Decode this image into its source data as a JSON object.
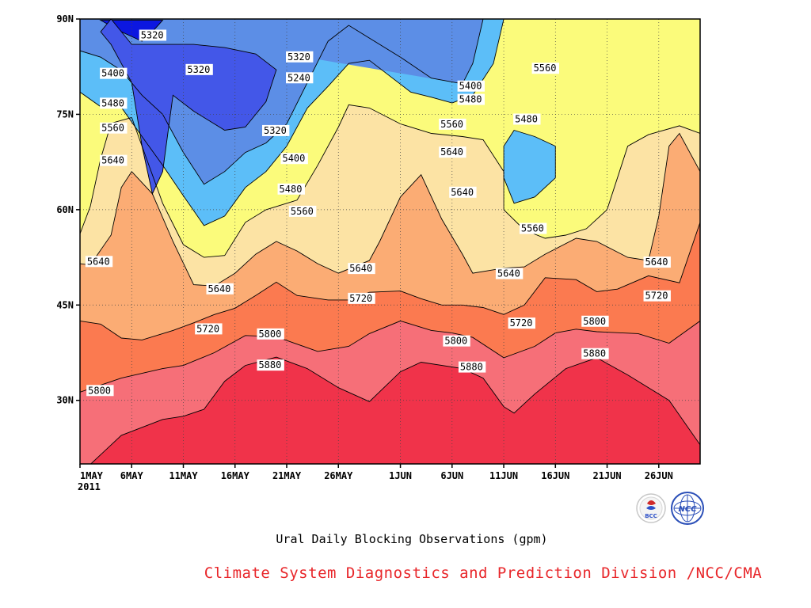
{
  "chart_data": {
    "type": "heatmap",
    "subtype": "filled-contour",
    "title": "Ural Daily Blocking Observations (gpm)",
    "credit": "Climate System Diagnostics and Prediction Division /NCC/CMA",
    "x_tick_labels": [
      "1MAY",
      "6MAY",
      "11MAY",
      "16MAY",
      "21MAY",
      "26MAY",
      "1JUN",
      "6JUN",
      "11JUN",
      "16JUN",
      "21JUN",
      "26JUN"
    ],
    "x_year_label": "2011",
    "x_tick_days": [
      0,
      5,
      10,
      15,
      20,
      25,
      31,
      36,
      41,
      46,
      51,
      56
    ],
    "xlim_days": [
      0,
      60
    ],
    "y_tick_labels": [
      "30N",
      "45N",
      "60N",
      "75N",
      "90N"
    ],
    "y_tick_values": [
      30,
      45,
      60,
      75,
      90
    ],
    "ylim": [
      20,
      90
    ],
    "grid": "dotted",
    "contour_levels": [
      5240,
      5320,
      5400,
      5480,
      5560,
      5640,
      5720,
      5800,
      5880
    ],
    "fill_colors": [
      "#0c17e0",
      "#4357e8",
      "#5c8ee6",
      "#5cbef8",
      "#fbfb7b",
      "#fce3a4",
      "#fbac74",
      "#fb7a50",
      "#f66f78",
      "#f0334a"
    ],
    "contour_boundaries": [
      {
        "level": 5880,
        "points": [
          [
            0,
            18.4
          ],
          [
            4,
            24.5
          ],
          [
            8,
            27.0
          ],
          [
            10,
            27.5
          ],
          [
            12,
            28.6
          ],
          [
            14,
            33
          ],
          [
            16,
            35.5
          ],
          [
            19,
            36.8
          ],
          [
            22,
            35
          ],
          [
            25,
            32
          ],
          [
            28,
            29.8
          ],
          [
            31,
            34.5
          ],
          [
            33,
            36
          ],
          [
            37,
            35
          ],
          [
            39,
            33.5
          ],
          [
            41,
            29
          ],
          [
            42,
            28
          ],
          [
            44,
            31
          ],
          [
            47,
            35
          ],
          [
            50,
            36.7
          ],
          [
            53,
            34
          ],
          [
            57,
            30
          ],
          [
            60,
            23
          ]
        ]
      },
      {
        "level": 5800,
        "points": [
          [
            0,
            31.3
          ],
          [
            4,
            33.5
          ],
          [
            8,
            35
          ],
          [
            10,
            35.5
          ],
          [
            13,
            37.5
          ],
          [
            16,
            40.2
          ],
          [
            19,
            40.0
          ],
          [
            23,
            37.7
          ],
          [
            26,
            38.5
          ],
          [
            28,
            40.5
          ],
          [
            31,
            42.5
          ],
          [
            34,
            41
          ],
          [
            36,
            40.6
          ],
          [
            38,
            39.9
          ],
          [
            41,
            36.7
          ],
          [
            44,
            38.5
          ],
          [
            46,
            40.6
          ],
          [
            48,
            41.2
          ],
          [
            50,
            40.8
          ],
          [
            54,
            40.5
          ],
          [
            57,
            39.0
          ],
          [
            60,
            42.5
          ]
        ]
      },
      {
        "level": 5720,
        "points": [
          [
            0,
            42.5
          ],
          [
            2,
            42
          ],
          [
            4,
            39.8
          ],
          [
            6,
            39.5
          ],
          [
            9,
            41
          ],
          [
            11,
            42.2
          ],
          [
            13,
            43.5
          ],
          [
            15,
            44.5
          ],
          [
            17,
            46.5
          ],
          [
            19,
            48.6
          ],
          [
            21,
            46.5
          ],
          [
            24,
            45.8
          ],
          [
            26,
            45.8
          ],
          [
            28,
            47
          ],
          [
            31,
            47.2
          ],
          [
            33,
            46
          ],
          [
            35,
            45
          ],
          [
            37,
            45
          ],
          [
            39,
            44.6
          ],
          [
            41,
            43.5
          ],
          [
            43,
            45
          ],
          [
            45,
            49.3
          ],
          [
            48,
            49
          ],
          [
            50,
            47.1
          ],
          [
            52,
            47.5
          ],
          [
            55,
            49.6
          ],
          [
            58,
            48.5
          ],
          [
            60,
            58
          ]
        ]
      },
      {
        "level": 5640,
        "points": [
          [
            0,
            51.5
          ],
          [
            1,
            51.3
          ],
          [
            3,
            56
          ],
          [
            4,
            63.5
          ],
          [
            5,
            66
          ],
          [
            7,
            62.5
          ],
          [
            9,
            55
          ],
          [
            11,
            48.2
          ],
          [
            13,
            48
          ],
          [
            15,
            50
          ],
          [
            17,
            53
          ],
          [
            19,
            55
          ],
          [
            21,
            53.5
          ],
          [
            23,
            51.5
          ],
          [
            25,
            50
          ],
          [
            28,
            52
          ],
          [
            29,
            55
          ],
          [
            31,
            62
          ],
          [
            33,
            65.5
          ],
          [
            35,
            58.5
          ],
          [
            37,
            53
          ],
          [
            38,
            50
          ],
          [
            41,
            50.8
          ],
          [
            43,
            51
          ],
          [
            45,
            53
          ],
          [
            48,
            55.5
          ],
          [
            50,
            55
          ],
          [
            53,
            52.5
          ],
          [
            55,
            52
          ],
          [
            56,
            59
          ],
          [
            57,
            70
          ],
          [
            58,
            72
          ],
          [
            60,
            66
          ]
        ]
      },
      {
        "level": 5560,
        "points": [
          [
            0,
            56.2
          ],
          [
            1,
            60.5
          ],
          [
            2,
            68
          ],
          [
            3,
            73.6
          ],
          [
            5,
            74.5
          ],
          [
            6,
            70
          ],
          [
            8,
            61
          ],
          [
            10,
            54.5
          ],
          [
            12,
            52.5
          ],
          [
            14,
            52.8
          ],
          [
            16,
            58
          ],
          [
            18,
            60
          ],
          [
            21,
            61.5
          ],
          [
            23,
            67
          ],
          [
            25,
            73
          ],
          [
            26,
            76.5
          ],
          [
            28,
            76
          ],
          [
            31,
            73.5
          ],
          [
            34,
            72
          ],
          [
            37,
            71.5
          ],
          [
            39,
            71.0
          ],
          [
            41,
            66
          ],
          [
            41,
            60
          ],
          [
            43,
            56.8
          ],
          [
            45,
            55.5
          ],
          [
            47,
            56
          ],
          [
            49,
            57
          ],
          [
            51,
            60
          ],
          [
            52,
            65
          ],
          [
            53,
            70
          ],
          [
            55,
            71.8
          ],
          [
            58,
            73.2
          ],
          [
            60,
            72
          ]
        ]
      },
      {
        "level": 5480,
        "points": [
          [
            0,
            78.5
          ],
          [
            2,
            76.2
          ],
          [
            4,
            76.1
          ],
          [
            6,
            71.5
          ],
          [
            8,
            67
          ],
          [
            10,
            62.2
          ],
          [
            12,
            57.5
          ],
          [
            14,
            59
          ],
          [
            16,
            63.5
          ],
          [
            18,
            66
          ],
          [
            20,
            70.0
          ],
          [
            22,
            76
          ],
          [
            24,
            79.4
          ],
          [
            26,
            83.0
          ],
          [
            28,
            83.5
          ],
          [
            30,
            81
          ],
          [
            32,
            78.5
          ],
          [
            34,
            77.7
          ],
          [
            36,
            76.8
          ],
          [
            38,
            78
          ],
          [
            40,
            83
          ],
          [
            41,
            90
          ]
        ]
      },
      {
        "level": 5400,
        "points": [
          [
            0,
            85
          ],
          [
            2,
            84
          ],
          [
            4,
            81.9
          ],
          [
            6,
            78
          ],
          [
            8,
            75
          ],
          [
            10,
            69
          ],
          [
            12,
            64
          ],
          [
            14,
            66
          ],
          [
            16,
            69
          ],
          [
            18,
            70.5
          ],
          [
            20,
            73.5
          ],
          [
            22,
            80
          ],
          [
            24,
            86.5
          ],
          [
            26,
            89
          ],
          [
            28,
            87
          ],
          [
            31,
            84
          ],
          [
            34,
            80.7
          ],
          [
            37,
            79.8
          ],
          [
            38,
            83
          ],
          [
            39,
            90
          ]
        ]
      }
    ],
    "closed_contours": [
      {
        "level": 5480,
        "points": [
          [
            42,
            72.5
          ],
          [
            44,
            71.5
          ],
          [
            46,
            70
          ],
          [
            46,
            65
          ],
          [
            44,
            62
          ],
          [
            42,
            61
          ],
          [
            41,
            65
          ],
          [
            41,
            70
          ]
        ]
      },
      {
        "level": 5240,
        "points": [
          [
            10,
            84
          ],
          [
            12,
            84.5
          ],
          [
            14,
            84
          ],
          [
            16,
            82
          ],
          [
            17,
            79.5
          ],
          [
            15,
            79
          ],
          [
            13,
            78.5
          ],
          [
            11,
            80
          ]
        ]
      },
      {
        "level": 5240,
        "points": [
          [
            2,
            89.8
          ],
          [
            4,
            88
          ],
          [
            6,
            86.5
          ],
          [
            7,
            88
          ],
          [
            8,
            89.8
          ]
        ]
      },
      {
        "level": 5320,
        "points": [
          [
            3,
            90
          ],
          [
            5,
            86
          ],
          [
            8,
            86
          ],
          [
            11,
            86
          ],
          [
            14,
            85.5
          ],
          [
            17,
            84.5
          ],
          [
            19,
            82
          ],
          [
            18,
            77
          ],
          [
            16,
            73
          ],
          [
            14,
            72.5
          ],
          [
            11,
            75.5
          ],
          [
            9,
            78
          ],
          [
            8,
            66
          ],
          [
            7,
            62.5
          ],
          [
            6,
            70
          ],
          [
            5,
            80
          ],
          [
            4,
            83
          ],
          [
            3,
            86
          ],
          [
            2,
            88
          ]
        ]
      }
    ],
    "contour_labels": [
      {
        "text": "5320",
        "x": 5.8,
        "y": 87.2
      },
      {
        "text": "5320",
        "x": 20.0,
        "y": 83.8
      },
      {
        "text": "5320",
        "x": 10.3,
        "y": 81.8
      },
      {
        "text": "5240",
        "x": 20.0,
        "y": 80.5
      },
      {
        "text": "5400",
        "x": 2.0,
        "y": 81.2
      },
      {
        "text": "5480",
        "x": 2.0,
        "y": 76.5
      },
      {
        "text": "5560",
        "x": 2.0,
        "y": 72.6
      },
      {
        "text": "5320",
        "x": 17.7,
        "y": 72.2
      },
      {
        "text": "5640",
        "x": 2.0,
        "y": 67.5
      },
      {
        "text": "5400",
        "x": 19.5,
        "y": 67.8
      },
      {
        "text": "5480",
        "x": 19.2,
        "y": 63.0
      },
      {
        "text": "5560",
        "x": 20.3,
        "y": 59.5
      },
      {
        "text": "5640",
        "x": 0.6,
        "y": 51.6
      },
      {
        "text": "5640",
        "x": 12.3,
        "y": 47.3
      },
      {
        "text": "5640",
        "x": 26.0,
        "y": 50.5
      },
      {
        "text": "5720",
        "x": 26.0,
        "y": 45.8
      },
      {
        "text": "5720",
        "x": 11.2,
        "y": 41.0
      },
      {
        "text": "5800",
        "x": 17.2,
        "y": 40.2
      },
      {
        "text": "5880",
        "x": 17.2,
        "y": 35.3
      },
      {
        "text": "5800",
        "x": 0.7,
        "y": 31.3
      },
      {
        "text": "5400",
        "x": 36.6,
        "y": 79.2
      },
      {
        "text": "5480",
        "x": 36.6,
        "y": 77.1
      },
      {
        "text": "5560",
        "x": 34.8,
        "y": 73.2
      },
      {
        "text": "5640",
        "x": 34.8,
        "y": 68.8
      },
      {
        "text": "5640",
        "x": 35.8,
        "y": 62.5
      },
      {
        "text": "5480",
        "x": 42.0,
        "y": 74.0
      },
      {
        "text": "5560",
        "x": 43.8,
        "y": 82.0
      },
      {
        "text": "5560",
        "x": 42.6,
        "y": 56.8
      },
      {
        "text": "5640",
        "x": 40.3,
        "y": 49.7
      },
      {
        "text": "5720",
        "x": 41.5,
        "y": 41.9
      },
      {
        "text": "5800",
        "x": 35.2,
        "y": 39.1
      },
      {
        "text": "5880",
        "x": 36.7,
        "y": 35.0
      },
      {
        "text": "5800",
        "x": 48.6,
        "y": 42.2
      },
      {
        "text": "5880",
        "x": 48.6,
        "y": 37.1
      },
      {
        "text": "5640",
        "x": 54.6,
        "y": 51.5
      },
      {
        "text": "5720",
        "x": 54.6,
        "y": 46.2
      }
    ]
  }
}
